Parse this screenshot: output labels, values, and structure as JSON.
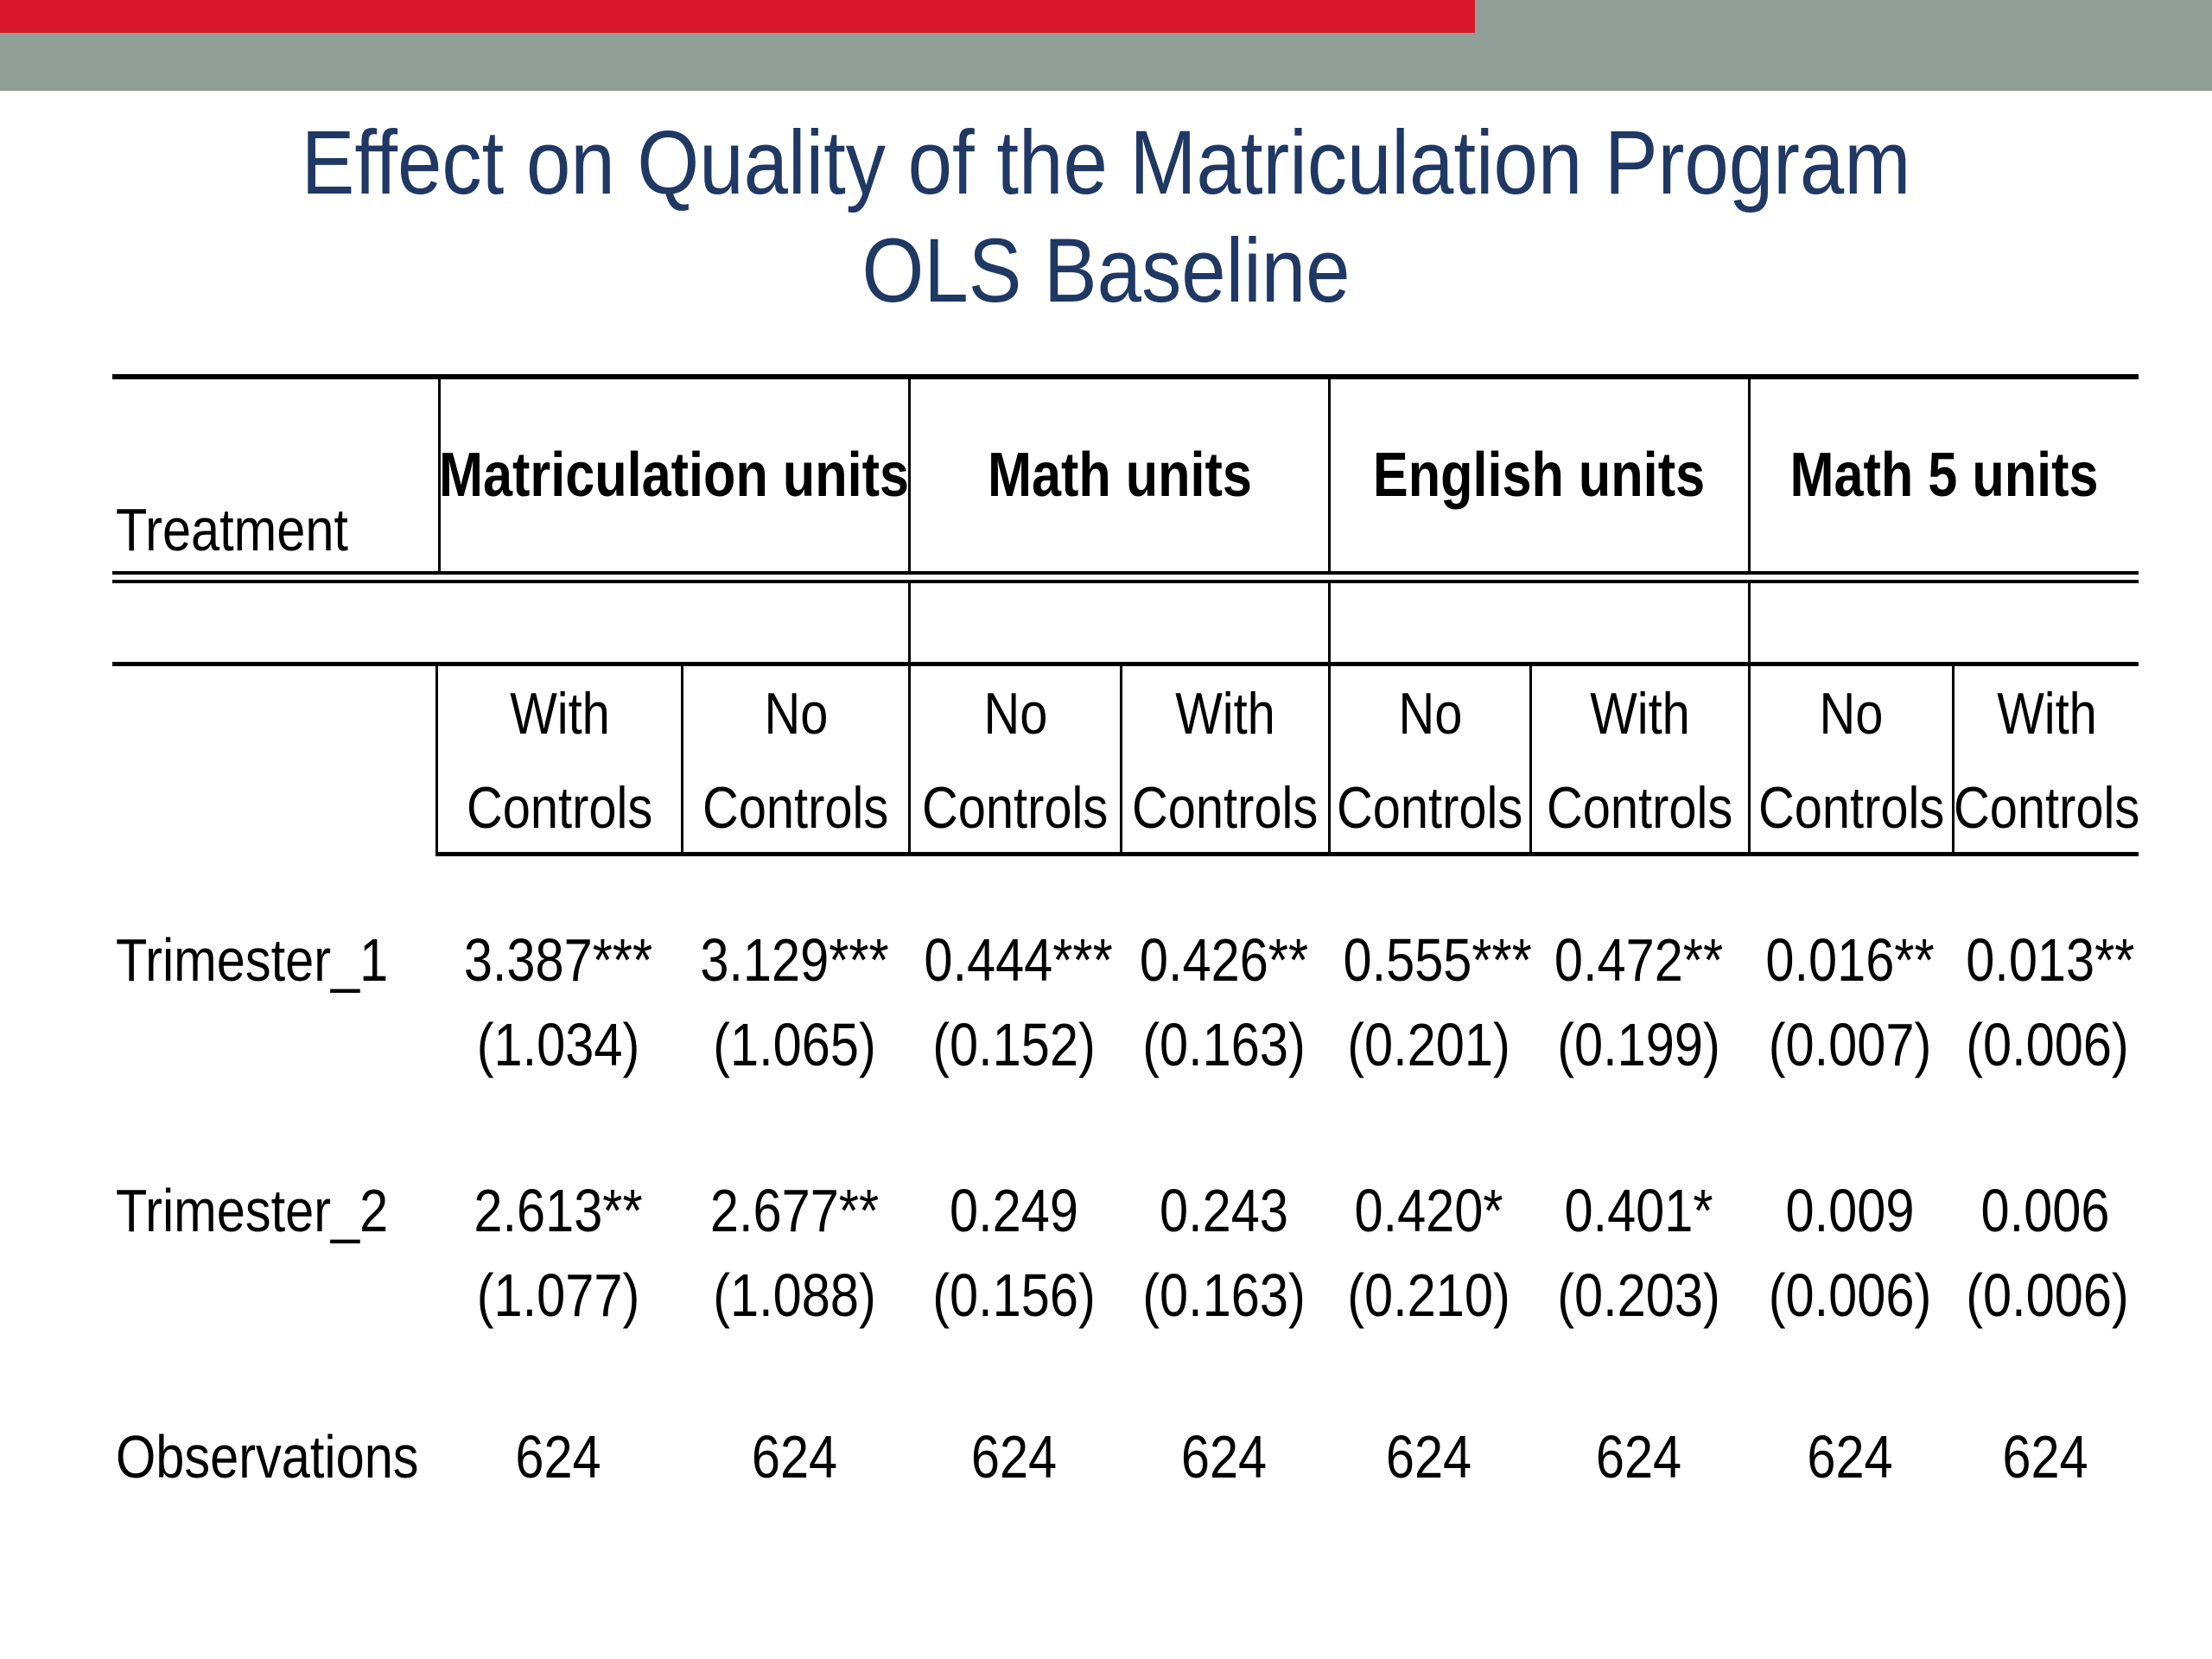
{
  "slide": {
    "top_bar_color": "#929f99",
    "progress_bar_color": "#d7182a",
    "title": {
      "line1": "Effect on Quality of the Matriculation Program",
      "line2": "OLS Baseline",
      "color": "#1f3864"
    }
  },
  "table": {
    "treatment_label": "Treatment",
    "group_headers": [
      "Matriculation units",
      "Math units",
      "English units",
      "Math 5 units"
    ],
    "subheaders": [
      {
        "line1": "With",
        "line2": "Controls"
      },
      {
        "line1": "No",
        "line2": "Controls"
      },
      {
        "line1": "No",
        "line2": "Controls"
      },
      {
        "line1": "With",
        "line2": "Controls"
      },
      {
        "line1": "No",
        "line2": "Controls"
      },
      {
        "line1": "With",
        "line2": "Controls"
      },
      {
        "line1": "No",
        "line2": "Controls"
      },
      {
        "line1": "With",
        "line2": "Controls"
      }
    ],
    "rows": [
      {
        "label": "Trimester_1",
        "estimates": [
          "3.387***",
          "3.129***",
          "0.444***",
          "0.426**",
          "0.555***",
          "0.472**",
          "0.016**",
          "0.013**"
        ],
        "std_errors": [
          "(1.034)",
          "(1.065)",
          "(0.152)",
          "(0.163)",
          "(0.201)",
          "(0.199)",
          "(0.007)",
          "(0.006)"
        ]
      },
      {
        "label": "Trimester_2",
        "estimates": [
          "2.613**",
          "2.677**",
          "0.249",
          "0.243",
          "0.420*",
          "0.401*",
          "0.009",
          "0.006"
        ],
        "std_errors": [
          "(1.077)",
          "(1.088)",
          "(0.156)",
          "(0.163)",
          "(0.210)",
          "(0.203)",
          "(0.006)",
          "(0.006)"
        ]
      },
      {
        "label": "Observations",
        "values": [
          "624",
          "624",
          "624",
          "624",
          "624",
          "624",
          "624",
          "624"
        ]
      }
    ]
  }
}
